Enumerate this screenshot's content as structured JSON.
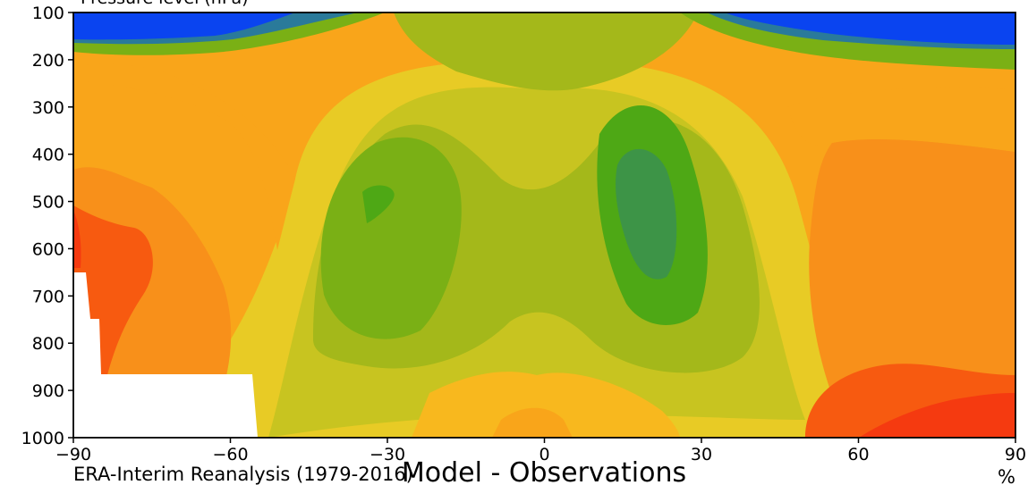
{
  "chart_data": {
    "type": "contour",
    "title": "Model - Observations",
    "source_label": "ERA-Interim Reanalysis (1979-2016)",
    "unit_label": "%",
    "top_label": "Pressure level (hPa)",
    "x": {
      "range": [
        -90,
        90
      ],
      "ticks": [
        -90,
        -60,
        -30,
        0,
        30,
        60,
        90
      ],
      "tick_labels": [
        "−90",
        "−60",
        "−30",
        "0",
        "30",
        "60",
        "90"
      ]
    },
    "y": {
      "range": [
        100,
        1000
      ],
      "ticks": [
        100,
        200,
        300,
        400,
        500,
        600,
        700,
        800,
        900,
        1000
      ],
      "tick_labels": [
        "100",
        "200",
        "300",
        "400",
        "500",
        "600",
        "700",
        "800",
        "900",
        "1000"
      ]
    },
    "palette": [
      "#0a44f0",
      "#2a7a9a",
      "#3d9447",
      "#4ea815",
      "#7ab015",
      "#a4b81a",
      "#c8c420",
      "#e8cb25",
      "#f8b81e",
      "#f9a51a",
      "#f8901a",
      "#f87010",
      "#f75a10",
      "#f53a10"
    ]
  }
}
